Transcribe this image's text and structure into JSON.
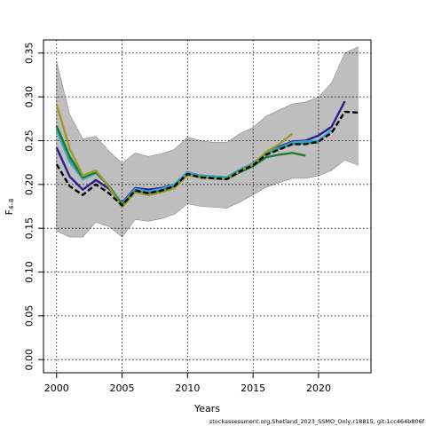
{
  "chart_data": {
    "type": "line",
    "xlabel": "Years",
    "ylabel_main": "F",
    "ylabel_sub": "4–8",
    "xlim": [
      1999,
      2024
    ],
    "ylim": [
      -0.015,
      0.365
    ],
    "x_ticks": [
      2000,
      2005,
      2010,
      2015,
      2020
    ],
    "y_ticks": [
      0.0,
      0.05,
      0.1,
      0.15,
      0.2,
      0.25,
      0.3,
      0.35
    ],
    "y_tick_labels": [
      "0.00",
      "0.05",
      "0.10",
      "0.15",
      "0.20",
      "0.25",
      "0.30",
      "0.35"
    ],
    "grid": true,
    "confidence_band": {
      "x": [
        2000,
        2001,
        2002,
        2003,
        2004,
        2005,
        2006,
        2007,
        2008,
        2009,
        2010,
        2011,
        2012,
        2013,
        2014,
        2015,
        2016,
        2017,
        2018,
        2019,
        2020,
        2021,
        2022,
        2023
      ],
      "upper": [
        0.34,
        0.28,
        0.252,
        0.255,
        0.238,
        0.224,
        0.236,
        0.232,
        0.235,
        0.24,
        0.254,
        0.25,
        0.248,
        0.248,
        0.258,
        0.265,
        0.278,
        0.285,
        0.292,
        0.294,
        0.3,
        0.316,
        0.35,
        0.357
      ],
      "lower": [
        0.147,
        0.14,
        0.14,
        0.157,
        0.152,
        0.14,
        0.16,
        0.158,
        0.161,
        0.166,
        0.178,
        0.175,
        0.174,
        0.173,
        0.18,
        0.188,
        0.197,
        0.202,
        0.207,
        0.207,
        0.21,
        0.216,
        0.228,
        0.222
      ],
      "color": "#bebebe"
    },
    "series": [
      {
        "color": "#000000",
        "dashed": true,
        "x": [
          2000,
          2001,
          2002,
          2003,
          2004,
          2005,
          2006,
          2007,
          2008,
          2009,
          2010,
          2011,
          2012,
          2013,
          2014,
          2015,
          2016,
          2017,
          2018,
          2019,
          2020,
          2021,
          2022,
          2023
        ],
        "y": [
          0.223,
          0.198,
          0.188,
          0.2,
          0.19,
          0.176,
          0.193,
          0.19,
          0.193,
          0.198,
          0.212,
          0.208,
          0.207,
          0.206,
          0.215,
          0.222,
          0.234,
          0.24,
          0.246,
          0.246,
          0.249,
          0.259,
          0.283,
          0.282
        ]
      },
      {
        "color": "#2c1e8c",
        "x": [
          2000,
          2001,
          2002,
          2003,
          2004,
          2005,
          2006,
          2007,
          2008,
          2009,
          2010,
          2011,
          2012,
          2013,
          2014,
          2015,
          2016,
          2017,
          2018,
          2019,
          2020,
          2021,
          2022
        ],
        "y": [
          0.242,
          0.209,
          0.194,
          0.205,
          0.195,
          0.179,
          0.196,
          0.194,
          0.196,
          0.2,
          0.214,
          0.21,
          0.209,
          0.208,
          0.217,
          0.224,
          0.236,
          0.243,
          0.249,
          0.25,
          0.256,
          0.266,
          0.295
        ]
      },
      {
        "color": "#3a9fd6",
        "x": [
          2000,
          2001,
          2002,
          2003,
          2004,
          2005,
          2006,
          2007,
          2008,
          2009,
          2010,
          2011,
          2012,
          2013,
          2014,
          2015,
          2016,
          2017,
          2018,
          2019,
          2020,
          2021
        ],
        "y": [
          0.262,
          0.226,
          0.206,
          0.213,
          0.198,
          0.178,
          0.195,
          0.192,
          0.195,
          0.2,
          0.214,
          0.21,
          0.209,
          0.208,
          0.217,
          0.224,
          0.236,
          0.242,
          0.248,
          0.249,
          0.25,
          0.262
        ]
      },
      {
        "color": "#1fa88a",
        "x": [
          2000,
          2001,
          2002,
          2003,
          2004,
          2005,
          2006,
          2007,
          2008,
          2009,
          2010,
          2011,
          2012,
          2013,
          2014,
          2015,
          2016,
          2017,
          2018,
          2019,
          2020
        ],
        "y": [
          0.266,
          0.23,
          0.208,
          0.214,
          0.198,
          0.177,
          0.193,
          0.19,
          0.193,
          0.198,
          0.212,
          0.209,
          0.208,
          0.207,
          0.216,
          0.223,
          0.235,
          0.241,
          0.246,
          0.247,
          0.248
        ]
      },
      {
        "color": "#1e7a2a",
        "x": [
          2000,
          2001,
          2002,
          2003,
          2004,
          2005,
          2006,
          2007,
          2008,
          2009,
          2010,
          2011,
          2012,
          2013,
          2014,
          2015,
          2016,
          2017,
          2018,
          2019
        ],
        "y": [
          0.267,
          0.232,
          0.208,
          0.214,
          0.198,
          0.176,
          0.192,
          0.189,
          0.192,
          0.197,
          0.211,
          0.208,
          0.207,
          0.206,
          0.214,
          0.221,
          0.231,
          0.234,
          0.236,
          0.233
        ]
      },
      {
        "color": "#9c9a2a",
        "x": [
          2000,
          2001,
          2002,
          2003,
          2004,
          2005,
          2006,
          2007,
          2008,
          2009,
          2010,
          2011,
          2012,
          2013,
          2014,
          2015,
          2016,
          2017,
          2018
        ],
        "y": [
          0.291,
          0.241,
          0.21,
          0.216,
          0.197,
          0.174,
          0.191,
          0.188,
          0.191,
          0.196,
          0.211,
          0.208,
          0.207,
          0.206,
          0.215,
          0.223,
          0.237,
          0.246,
          0.258
        ]
      }
    ]
  },
  "footer": "stockassessment.org,Shetland_2023_SSMO_Only,r18815, git:1cc464b806f"
}
